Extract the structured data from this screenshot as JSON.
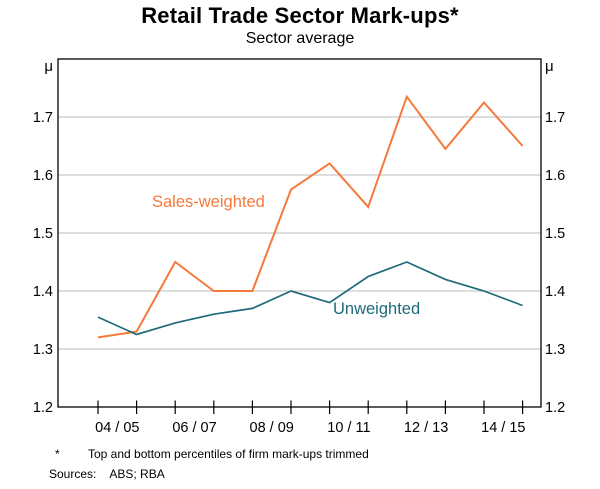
{
  "chart_data": {
    "type": "line",
    "title": "Retail Trade Sector Mark-ups*",
    "subtitle": "Sector average",
    "unit_label": "μ",
    "x_tick_count": 12,
    "x_labels": [
      "04 / 05",
      "06 / 07",
      "08 / 09",
      "10 / 11",
      "12 / 13",
      "14 / 15"
    ],
    "ylim": [
      1.2,
      1.8
    ],
    "yticks": [
      1.2,
      1.3,
      1.4,
      1.5,
      1.6,
      1.7
    ],
    "gridlines": [
      1.3,
      1.4,
      1.5,
      1.6,
      1.7
    ],
    "grid_color": "#BDBDBD",
    "axis_color": "#000000",
    "legend_position": "inline-labels",
    "series": [
      {
        "name": "Sales-weighted",
        "color": "#F5793B",
        "values": [
          1.32,
          1.33,
          1.45,
          1.4,
          1.4,
          1.575,
          1.62,
          1.545,
          1.735,
          1.645,
          1.725,
          1.65
        ]
      },
      {
        "name": "Unweighted",
        "color": "#1F6A79",
        "values": [
          1.355,
          1.325,
          1.345,
          1.36,
          1.37,
          1.4,
          1.38,
          1.425,
          1.45,
          1.42,
          1.4,
          1.375
        ]
      }
    ]
  },
  "footnotes": {
    "asterisk": "*",
    "note": "Top and bottom percentiles of firm mark-ups trimmed",
    "sources_label": "Sources:",
    "sources_value": "ABS; RBA"
  }
}
